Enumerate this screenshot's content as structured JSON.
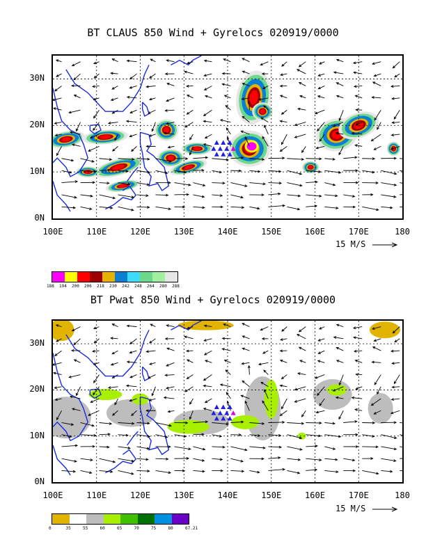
{
  "panel1": {
    "title": "BT CLAUS 850 Wind + Gyrelocs 020919/0000",
    "lat_labels": [
      "30N",
      "20N",
      "10N",
      "0N"
    ],
    "lon_labels": [
      "100E",
      "110E",
      "120E",
      "130E",
      "140E",
      "150E",
      "160E",
      "170E",
      "180"
    ],
    "wind_scale": "15 M/S",
    "legend_colors": [
      "#ff00ff",
      "#ffff00",
      "#ff0000",
      "#a00000",
      "#e6b400",
      "#0a7fd4",
      "#3cdcff",
      "#6cd88a",
      "#a0f0a0",
      "#e6e6e6"
    ],
    "legend_labels": [
      "188",
      "194",
      "200",
      "206",
      "218",
      "230",
      "242",
      "248",
      "264",
      "280",
      "288"
    ]
  },
  "panel2": {
    "title": "BT Pwat 850 Wind + Gyrelocs 020919/0000",
    "lat_labels": [
      "30N",
      "20N",
      "10N",
      "0N"
    ],
    "lon_labels": [
      "100E",
      "110E",
      "120E",
      "130E",
      "140E",
      "150E",
      "160E",
      "170E",
      "180"
    ],
    "wind_scale": "15 M/S",
    "legend_colors": [
      "#e0b400",
      "#ffffff",
      "#bdbdbd",
      "#a8f000",
      "#40c000",
      "#007000",
      "#0090e0",
      "#6a00c8"
    ],
    "legend_labels": [
      "0",
      "35",
      "55",
      "60",
      "65",
      "70",
      "75",
      "80",
      "67.21"
    ]
  }
}
